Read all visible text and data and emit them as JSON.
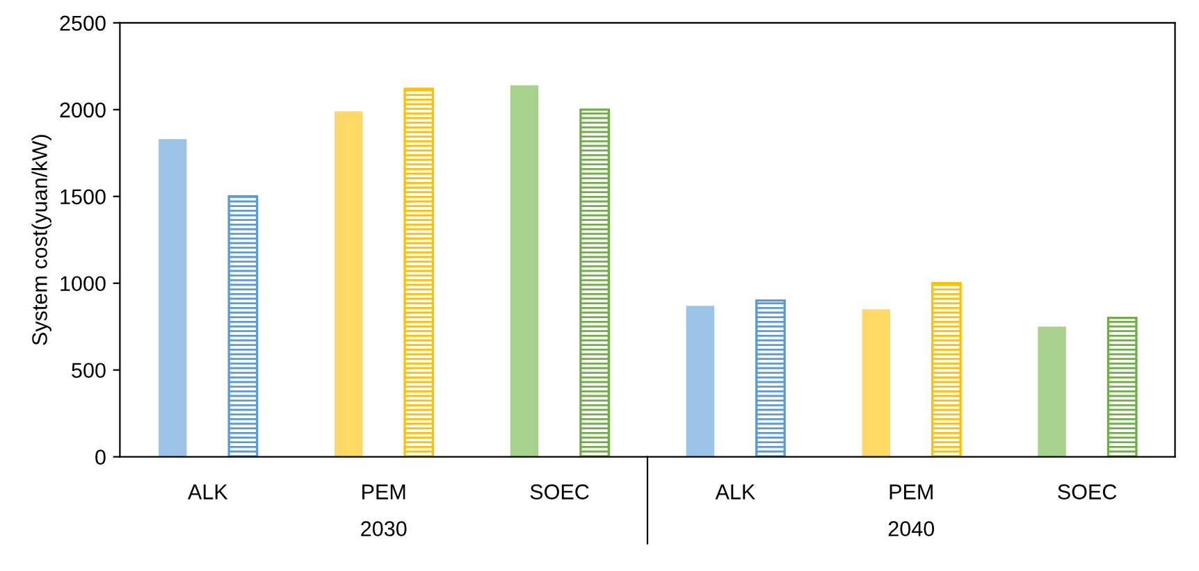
{
  "chart_data": {
    "type": "bar",
    "ylabel": "System cost(yuan/kW)",
    "categories": [
      "ALK",
      "PEM",
      "SOEC",
      "ALK",
      "PEM",
      "SOEC"
    ],
    "series": [
      {
        "colors": [
          "#9dc3e6",
          "#ffd966",
          "#a9d18e",
          "#9dc3e6",
          "#ffd966",
          "#a9d18e"
        ],
        "values": [
          1830,
          1990,
          2140,
          870,
          850,
          750
        ]
      },
      {
        "colors": [
          "#5b9bd5",
          "#ffc000",
          "#70ad47",
          "#5b9bd5",
          "#ffc000",
          "#70ad47"
        ],
        "values": [
          1500,
          2120,
          2000,
          900,
          1000,
          800
        ]
      }
    ],
    "ylim": [
      0,
      2500
    ],
    "yticks": [
      0,
      500,
      1000,
      1500,
      2000,
      2500
    ],
    "annotations": [
      "2030",
      "2040"
    ],
    "grid": false,
    "legend": false
  }
}
